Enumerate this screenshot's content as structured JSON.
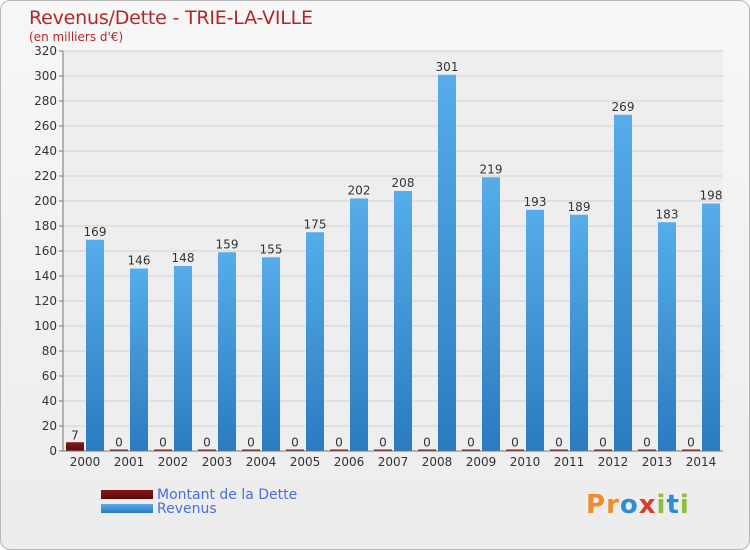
{
  "chart_data": {
    "type": "bar",
    "title": "Revenus/Dette - TRIE-LA-VILLE",
    "subtitle": "(en milliers d'€)",
    "categories": [
      "2000",
      "2001",
      "2002",
      "2003",
      "2004",
      "2005",
      "2006",
      "2007",
      "2008",
      "2009",
      "2010",
      "2011",
      "2012",
      "2013",
      "2014"
    ],
    "series": [
      {
        "name": "Montant de la Dette",
        "color": "#6e0f0f",
        "values": [
          7,
          0,
          0,
          0,
          0,
          0,
          0,
          0,
          0,
          0,
          0,
          0,
          0,
          0,
          0
        ]
      },
      {
        "name": "Revenus",
        "color": "#3a93d8",
        "values": [
          169,
          146,
          148,
          159,
          155,
          175,
          202,
          208,
          301,
          219,
          193,
          189,
          269,
          183,
          198
        ]
      }
    ],
    "ylim": [
      0,
      320
    ],
    "yticks": [
      0,
      20,
      40,
      60,
      80,
      100,
      120,
      140,
      160,
      180,
      200,
      220,
      240,
      260,
      280,
      300,
      320
    ],
    "xlabel": "",
    "ylabel": "",
    "grid": true,
    "legend_position": "bottom-left"
  },
  "logo": {
    "text": "Proxiti",
    "letters": [
      {
        "ch": "P",
        "color": "#f08c2a"
      },
      {
        "ch": "r",
        "color": "#f08c2a"
      },
      {
        "ch": "o",
        "color": "#2c8fd6"
      },
      {
        "ch": "x",
        "color": "#d63d2c"
      },
      {
        "ch": "i",
        "color": "#8dbf3a"
      },
      {
        "ch": "t",
        "color": "#2c8fd6"
      },
      {
        "ch": "i",
        "color": "#8dbf3a"
      }
    ]
  }
}
